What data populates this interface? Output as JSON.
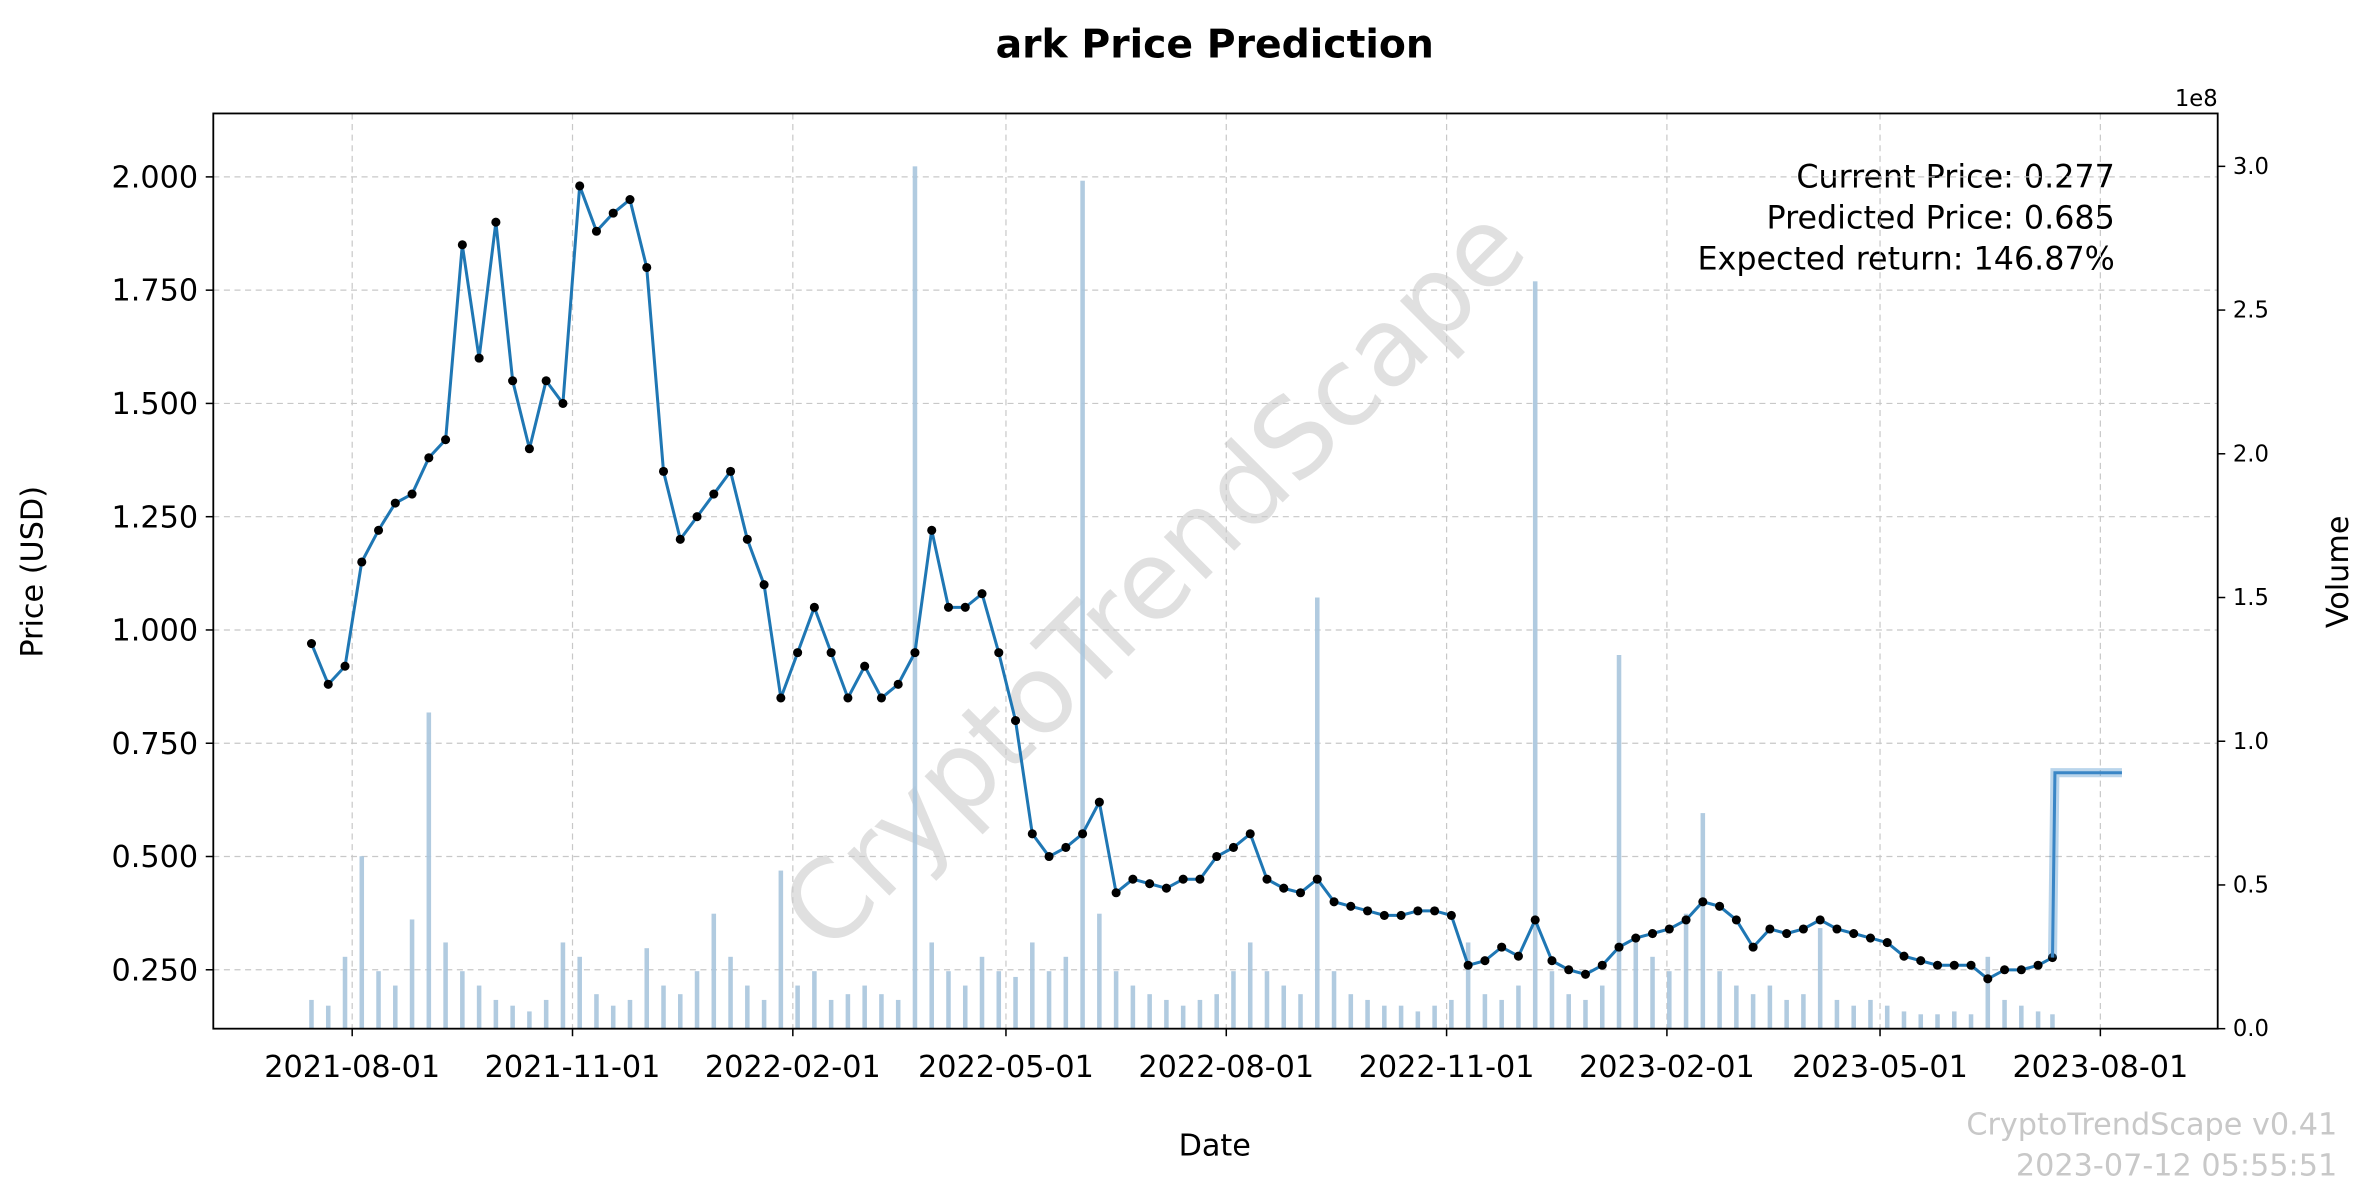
{
  "chart_data": {
    "type": "line",
    "title": "ark Price Prediction",
    "xlabel": "Date",
    "ylabel": "Price (USD)",
    "y2label": "Volume",
    "y2_offset_label": "1e8",
    "annotations": [
      "Current Price: 0.277",
      "Predicted Price: 0.685",
      "Expected return: 146.87%"
    ],
    "watermark": "CryptoTrendScape",
    "footer": [
      "CryptoTrendScape v0.41",
      "2023-07-12 05:55:51"
    ],
    "grid": true,
    "xlim": [
      "2021-06-04",
      "2023-09-19"
    ],
    "xticks": [
      "2021-08-01",
      "2021-11-01",
      "2022-02-01",
      "2022-05-01",
      "2022-08-01",
      "2022-11-01",
      "2023-02-01",
      "2023-05-01",
      "2023-08-01"
    ],
    "ylim": [
      0.12,
      2.14
    ],
    "yticks": [
      {
        "value": 0.25,
        "label": "0.250"
      },
      {
        "value": 0.5,
        "label": "0.500"
      },
      {
        "value": 0.75,
        "label": "0.750"
      },
      {
        "value": 1,
        "label": "1.000"
      },
      {
        "value": 1.25,
        "label": "1.250"
      },
      {
        "value": 1.5,
        "label": "1.500"
      },
      {
        "value": 1.75,
        "label": "1.750"
      },
      {
        "value": 2,
        "label": "2.000"
      }
    ],
    "y2lim": [
      0,
      3.184
    ],
    "y2ticks": [
      {
        "value": 0,
        "label": "0.0"
      },
      0.5,
      {
        "value": 1,
        "label": "1.0"
      },
      1.5,
      {
        "value": 2,
        "label": "2.0"
      },
      2.5,
      {
        "value": 3,
        "label": "3.0"
      }
    ],
    "x": [
      "2021-07-15",
      "2021-07-22",
      "2021-07-29",
      "2021-08-05",
      "2021-08-12",
      "2021-08-19",
      "2021-08-26",
      "2021-09-02",
      "2021-09-09",
      "2021-09-16",
      "2021-09-23",
      "2021-09-30",
      "2021-10-07",
      "2021-10-14",
      "2021-10-21",
      "2021-10-28",
      "2021-11-04",
      "2021-11-11",
      "2021-11-18",
      "2021-11-25",
      "2021-12-02",
      "2021-12-09",
      "2021-12-16",
      "2021-12-23",
      "2021-12-30",
      "2022-01-06",
      "2022-01-13",
      "2022-01-20",
      "2022-01-27",
      "2022-02-03",
      "2022-02-10",
      "2022-02-17",
      "2022-02-24",
      "2022-03-03",
      "2022-03-10",
      "2022-03-17",
      "2022-03-24",
      "2022-03-31",
      "2022-04-07",
      "2022-04-14",
      "2022-04-21",
      "2022-04-28",
      "2022-05-05",
      "2022-05-12",
      "2022-05-19",
      "2022-05-26",
      "2022-06-02",
      "2022-06-09",
      "2022-06-16",
      "2022-06-23",
      "2022-06-30",
      "2022-07-07",
      "2022-07-14",
      "2022-07-21",
      "2022-07-28",
      "2022-08-04",
      "2022-08-11",
      "2022-08-18",
      "2022-08-25",
      "2022-09-01",
      "2022-09-08",
      "2022-09-15",
      "2022-09-22",
      "2022-09-29",
      "2022-10-06",
      "2022-10-13",
      "2022-10-20",
      "2022-10-27",
      "2022-11-03",
      "2022-11-10",
      "2022-11-17",
      "2022-11-24",
      "2022-12-01",
      "2022-12-08",
      "2022-12-15",
      "2022-12-22",
      "2022-12-29",
      "2023-01-05",
      "2023-01-12",
      "2023-01-19",
      "2023-01-26",
      "2023-02-02",
      "2023-02-09",
      "2023-02-16",
      "2023-02-23",
      "2023-03-02",
      "2023-03-09",
      "2023-03-16",
      "2023-03-23",
      "2023-03-30",
      "2023-04-06",
      "2023-04-13",
      "2023-04-20",
      "2023-04-27",
      "2023-05-04",
      "2023-05-11",
      "2023-05-18",
      "2023-05-25",
      "2023-06-01",
      "2023-06-08",
      "2023-06-15",
      "2023-06-22",
      "2023-06-29",
      "2023-07-06",
      "2023-07-12"
    ],
    "price": {
      "color": "#1f77b4",
      "marker_color": "#000000",
      "values": [
        0.97,
        0.88,
        0.92,
        1.15,
        1.22,
        1.28,
        1.3,
        1.38,
        1.42,
        1.85,
        1.6,
        1.9,
        1.55,
        1.4,
        1.55,
        1.5,
        1.98,
        1.88,
        1.92,
        1.95,
        1.8,
        1.35,
        1.2,
        1.25,
        1.3,
        1.35,
        1.2,
        1.1,
        0.85,
        0.95,
        1.05,
        0.95,
        0.85,
        0.92,
        0.85,
        0.88,
        0.95,
        1.22,
        1.05,
        1.05,
        1.08,
        0.95,
        0.8,
        0.55,
        0.5,
        0.52,
        0.55,
        0.62,
        0.42,
        0.45,
        0.44,
        0.43,
        0.45,
        0.45,
        0.5,
        0.52,
        0.55,
        0.45,
        0.43,
        0.42,
        0.45,
        0.4,
        0.39,
        0.38,
        0.37,
        0.37,
        0.38,
        0.38,
        0.37,
        0.26,
        0.27,
        0.3,
        0.28,
        0.36,
        0.27,
        0.25,
        0.24,
        0.26,
        0.3,
        0.32,
        0.33,
        0.34,
        0.36,
        0.4,
        0.39,
        0.36,
        0.3,
        0.34,
        0.33,
        0.34,
        0.36,
        0.34,
        0.33,
        0.32,
        0.31,
        0.28,
        0.27,
        0.26,
        0.26,
        0.26,
        0.23,
        0.25,
        0.25,
        0.26,
        0.277
      ]
    },
    "volume": {
      "color": "#a8c5dd",
      "axis": "y2",
      "values": [
        0.1,
        0.08,
        0.25,
        0.6,
        0.2,
        0.15,
        0.38,
        1.1,
        0.3,
        0.2,
        0.15,
        0.1,
        0.08,
        0.06,
        0.1,
        0.3,
        0.25,
        0.12,
        0.08,
        0.1,
        0.28,
        0.15,
        0.12,
        0.2,
        0.4,
        0.25,
        0.15,
        0.1,
        0.55,
        0.15,
        0.2,
        0.1,
        0.12,
        0.15,
        0.12,
        0.1,
        3.0,
        0.3,
        0.2,
        0.15,
        0.25,
        0.2,
        0.18,
        0.3,
        0.2,
        0.25,
        2.95,
        0.4,
        0.2,
        0.15,
        0.12,
        0.1,
        0.08,
        0.1,
        0.12,
        0.2,
        0.3,
        0.2,
        0.15,
        0.12,
        1.5,
        0.2,
        0.12,
        0.1,
        0.08,
        0.08,
        0.06,
        0.08,
        0.1,
        0.3,
        0.12,
        0.1,
        0.15,
        2.6,
        0.2,
        0.12,
        0.1,
        0.15,
        1.3,
        0.3,
        0.25,
        0.2,
        0.4,
        0.75,
        0.2,
        0.15,
        0.12,
        0.15,
        0.1,
        0.12,
        0.35,
        0.1,
        0.08,
        0.1,
        0.08,
        0.06,
        0.05,
        0.05,
        0.06,
        0.05,
        0.25,
        0.1,
        0.08,
        0.06,
        0.05
      ]
    },
    "prediction": {
      "color": "#3a86c6",
      "x": [
        "2023-07-12",
        "2023-07-13",
        "2023-08-10"
      ],
      "values": [
        0.277,
        0.685,
        0.685
      ]
    }
  }
}
